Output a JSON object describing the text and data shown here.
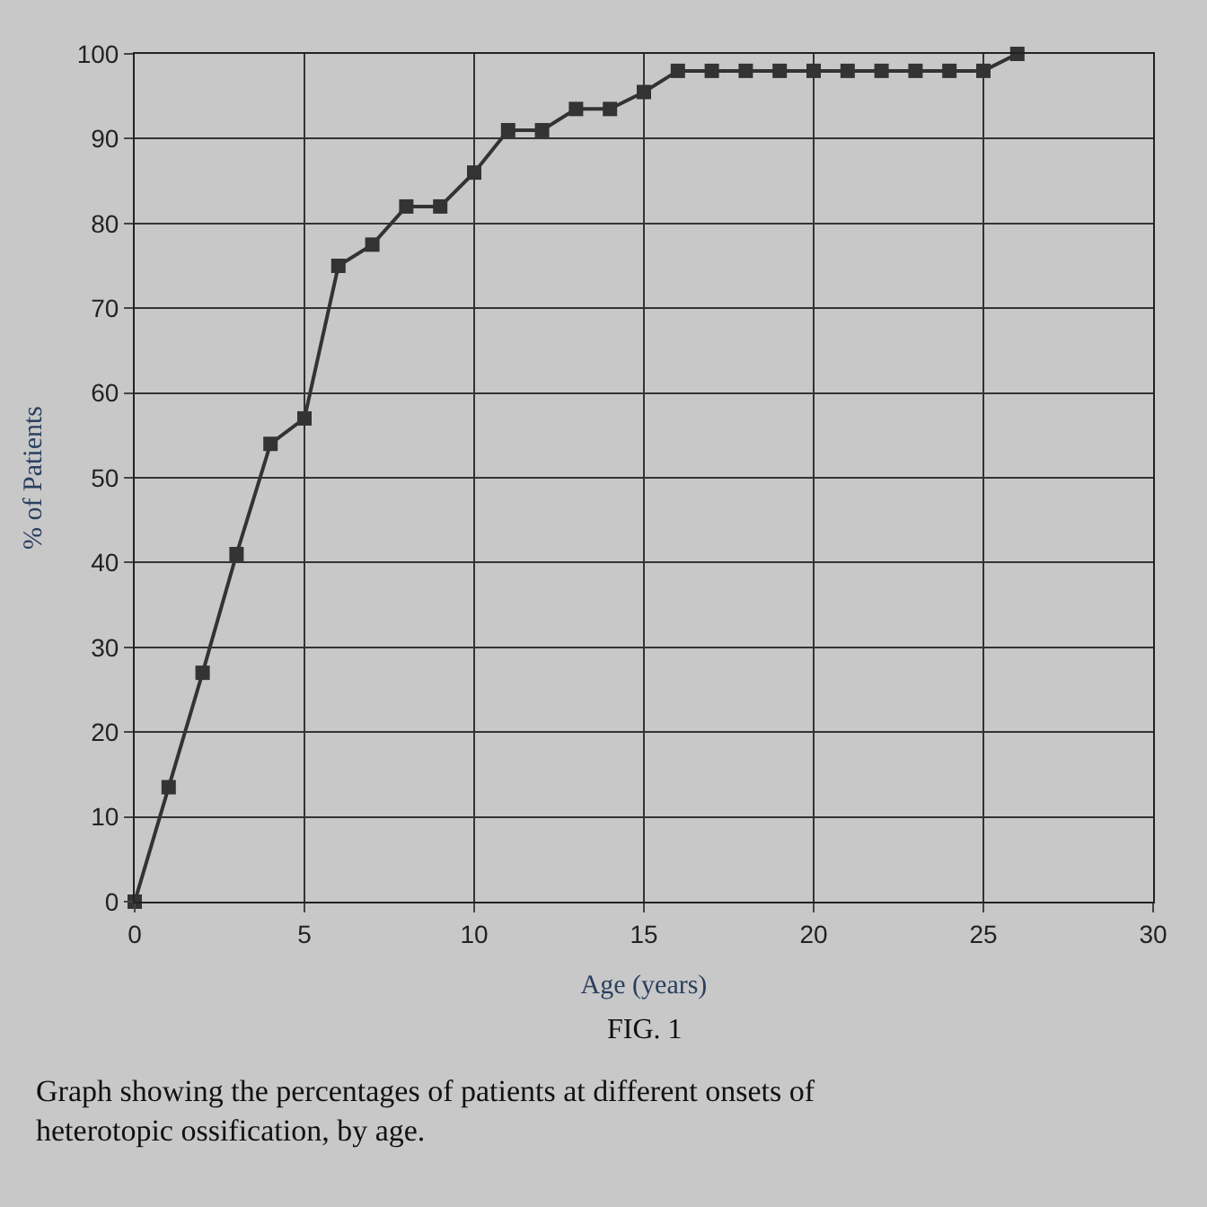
{
  "chart_data": {
    "type": "line",
    "xlabel": "Age (years)",
    "ylabel": "% of Patients",
    "x": [
      0,
      1,
      2,
      3,
      4,
      5,
      6,
      7,
      8,
      9,
      10,
      11,
      12,
      13,
      14,
      15,
      16,
      17,
      18,
      19,
      20,
      21,
      22,
      23,
      24,
      25,
      26
    ],
    "series": [
      {
        "color": "#333333",
        "values": [
          0,
          13.5,
          27,
          41,
          54,
          57,
          75,
          77.5,
          82,
          82,
          86,
          91,
          91,
          93.5,
          93.5,
          95.5,
          98,
          98,
          98,
          98,
          98,
          98,
          98,
          98,
          98,
          98,
          100
        ]
      }
    ],
    "xlim": [
      0,
      30
    ],
    "xticks": [
      0,
      5,
      10,
      15,
      20,
      25,
      30
    ],
    "ylim": [
      0,
      100
    ],
    "yticks": [
      0,
      10,
      20,
      30,
      40,
      50,
      60,
      70,
      80,
      90,
      100
    ],
    "grid": true,
    "marker": "square",
    "line_style": "solid",
    "legend": false,
    "annotations": [
      "FIG. 1",
      "Graph showing the percentages of patients at different onsets of heterotopic ossification, by age."
    ]
  }
}
